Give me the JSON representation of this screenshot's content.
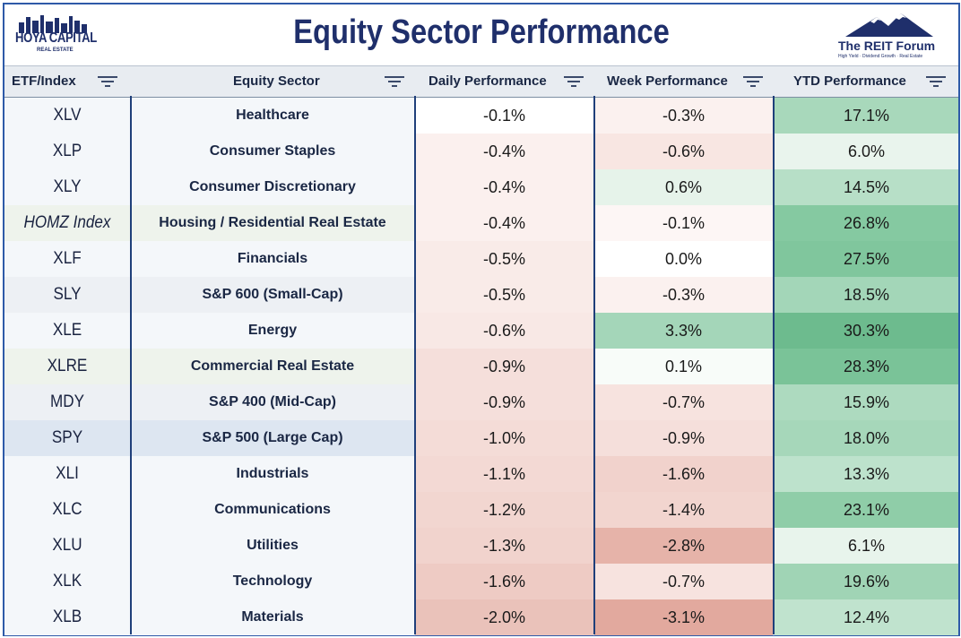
{
  "header": {
    "title": "Equity Sector Performance",
    "left_logo_text": "HOYA CAPITAL",
    "left_logo_sub": "REAL ESTATE",
    "right_logo_name": "The REIT Forum",
    "right_logo_tag": "High Yield · Dividend Growth · Real Estate"
  },
  "columns": [
    "ETF/Index",
    "Equity Sector",
    "Daily Performance",
    "Week Performance",
    "YTD Performance"
  ],
  "rows": [
    {
      "etf": "XLV",
      "sector": "Healthcare",
      "daily": "-0.1%",
      "week": "-0.3%",
      "ytd": "17.1%"
    },
    {
      "etf": "XLP",
      "sector": "Consumer Staples",
      "daily": "-0.4%",
      "week": "-0.6%",
      "ytd": "6.0%"
    },
    {
      "etf": "XLY",
      "sector": "Consumer Discretionary",
      "daily": "-0.4%",
      "week": "0.6%",
      "ytd": "14.5%"
    },
    {
      "etf": "HOMZ Index",
      "sector": "Housing / Residential Real Estate",
      "daily": "-0.4%",
      "week": "-0.1%",
      "ytd": "26.8%"
    },
    {
      "etf": "XLF",
      "sector": "Financials",
      "daily": "-0.5%",
      "week": "0.0%",
      "ytd": "27.5%"
    },
    {
      "etf": "SLY",
      "sector": "S&P 600 (Small-Cap)",
      "daily": "-0.5%",
      "week": "-0.3%",
      "ytd": "18.5%"
    },
    {
      "etf": "XLE",
      "sector": "Energy",
      "daily": "-0.6%",
      "week": "3.3%",
      "ytd": "30.3%"
    },
    {
      "etf": "XLRE",
      "sector": "Commercial Real Estate",
      "daily": "-0.9%",
      "week": "0.1%",
      "ytd": "28.3%"
    },
    {
      "etf": "MDY",
      "sector": "S&P 400 (Mid-Cap)",
      "daily": "-0.9%",
      "week": "-0.7%",
      "ytd": "15.9%"
    },
    {
      "etf": "SPY",
      "sector": "S&P 500 (Large Cap)",
      "daily": "-1.0%",
      "week": "-0.9%",
      "ytd": "18.0%"
    },
    {
      "etf": "XLI",
      "sector": "Industrials",
      "daily": "-1.1%",
      "week": "-1.6%",
      "ytd": "13.3%"
    },
    {
      "etf": "XLC",
      "sector": "Communications",
      "daily": "-1.2%",
      "week": "-1.4%",
      "ytd": "23.1%"
    },
    {
      "etf": "XLU",
      "sector": "Utilities",
      "daily": "-1.3%",
      "week": "-2.8%",
      "ytd": "6.1%"
    },
    {
      "etf": "XLK",
      "sector": "Technology",
      "daily": "-1.6%",
      "week": "-0.7%",
      "ytd": "19.6%"
    },
    {
      "etf": "XLB",
      "sector": "Materials",
      "daily": "-2.0%",
      "week": "-3.1%",
      "ytd": "12.4%"
    }
  ],
  "row_styles": [
    {
      "bg": "#f4f7fa",
      "daily": "#ffffff",
      "week": "#fbf1ef",
      "ytd": "#a8d8bb"
    },
    {
      "bg": "#f4f7fa",
      "daily": "#fbf0ee",
      "week": "#f8e6e2",
      "ytd": "#e9f4ed"
    },
    {
      "bg": "#f4f7fa",
      "daily": "#fbf0ee",
      "week": "#e6f3ea",
      "ytd": "#b7dfc7"
    },
    {
      "bg": "#eef3ec",
      "italic": true,
      "daily": "#fbf0ee",
      "week": "#fdf6f5",
      "ytd": "#85c9a1"
    },
    {
      "bg": "#f4f7fa",
      "daily": "#f9ebe8",
      "week": "#ffffff",
      "ytd": "#80c69d"
    },
    {
      "bg": "#edf0f4",
      "daily": "#f9ebe8",
      "week": "#fbf1ef",
      "ytd": "#a3d6b8"
    },
    {
      "bg": "#f4f7fa",
      "daily": "#f8e8e5",
      "week": "#a4d6b9",
      "ytd": "#6dbb8e"
    },
    {
      "bg": "#eef3ec",
      "daily": "#f5dfdb",
      "week": "#f8fcf9",
      "ytd": "#7ac398"
    },
    {
      "bg": "#edf0f4",
      "daily": "#f5dfdb",
      "week": "#f7e3df",
      "ytd": "#addabf"
    },
    {
      "bg": "#dde6f1",
      "daily": "#f4dcd7",
      "week": "#f5dfdb",
      "ytd": "#a6d7ba"
    },
    {
      "bg": "#f4f7fa",
      "daily": "#f3d9d4",
      "week": "#f1d2cc",
      "ytd": "#bde2cc"
    },
    {
      "bg": "#f4f7fa",
      "daily": "#f2d6d0",
      "week": "#f2d5cf",
      "ytd": "#8fcda8"
    },
    {
      "bg": "#f4f7fa",
      "daily": "#f1d3cd",
      "week": "#e6b3a9",
      "ytd": "#e8f4ec"
    },
    {
      "bg": "#f4f7fa",
      "daily": "#eecbc4",
      "week": "#f7e3df",
      "ytd": "#a0d4b5"
    },
    {
      "bg": "#f4f7fa",
      "daily": "#eac2ba",
      "week": "#e2a99e",
      "ytd": "#c0e3ce"
    }
  ],
  "colors": {
    "title": "#1f2f6b",
    "border": "#2e5aa8",
    "header_bg": "#e8ecf1"
  }
}
